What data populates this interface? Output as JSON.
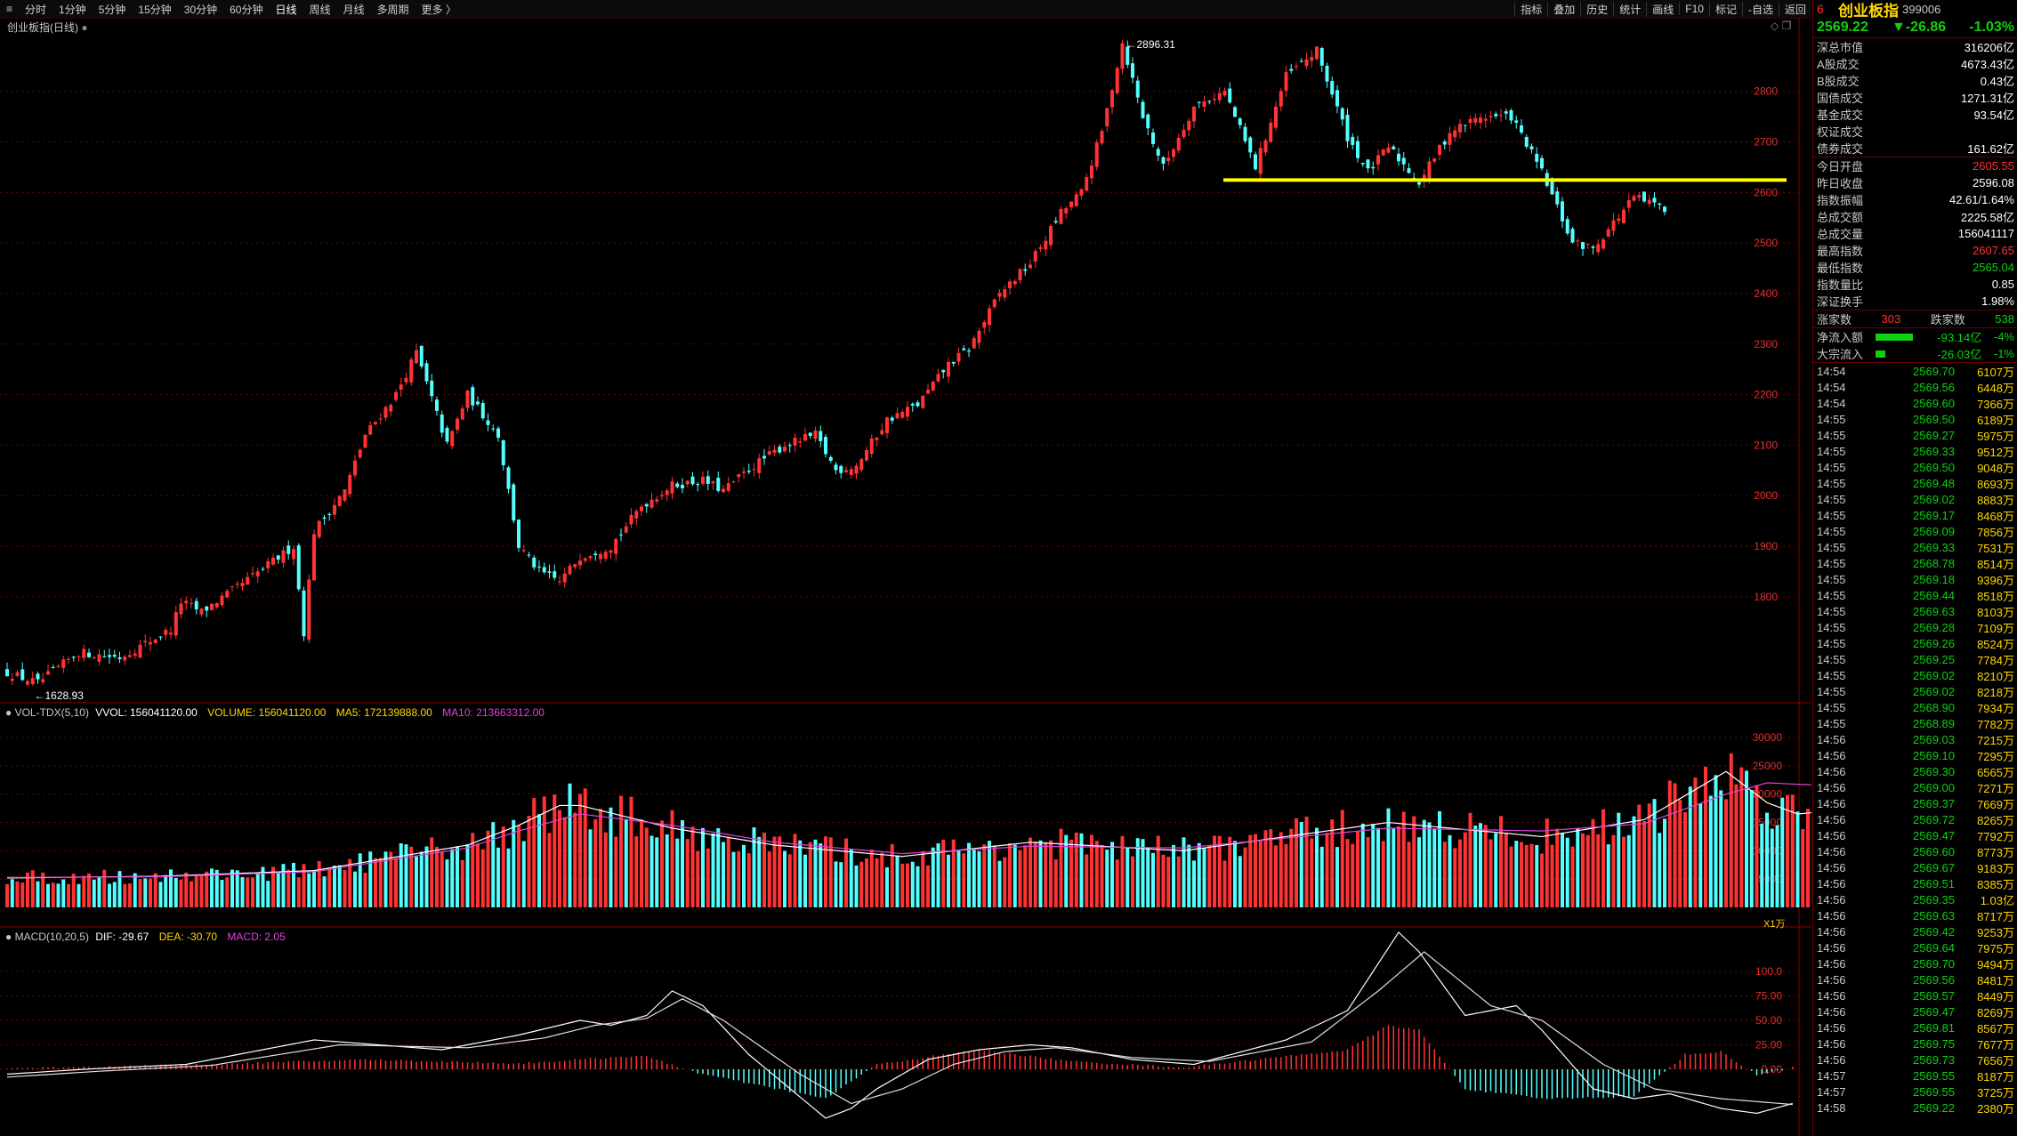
{
  "toolbar": {
    "items": [
      "分时",
      "1分钟",
      "5分钟",
      "15分钟",
      "30分钟",
      "60分钟",
      "日线",
      "周线",
      "月线",
      "多周期",
      "更多 〉"
    ],
    "active_index": 6,
    "right_items": [
      "指标",
      "叠加",
      "历史",
      "统计",
      "画线",
      "F10",
      "标记",
      "-自选",
      "返回"
    ]
  },
  "main_panel": {
    "title": "创业板指(日线)",
    "y_ticks": [
      1800,
      1900,
      2000,
      2100,
      2200,
      2300,
      2400,
      2500,
      2600,
      2700,
      2800
    ],
    "high_label": "2896.31",
    "low_label": "1628.93",
    "support_line": 2600,
    "colors": {
      "up": "#ff3333",
      "down": "#54ffff",
      "support": "#ffff00",
      "grid": "#7a0000"
    }
  },
  "volume_panel": {
    "title": "VOL-TDX(5,10)",
    "vvol": "VVOL: 156041120.00",
    "volume": "VOLUME: 156041120.00",
    "ma5": "MA5: 172139888.00",
    "ma10": "MA10: 213663312.00",
    "y_ticks": [
      5000,
      10000,
      15000,
      20000,
      25000,
      30000
    ],
    "unit": "X1万"
  },
  "macd_panel": {
    "title": "MACD(10,20,5)",
    "dif": "DIF: -29.67",
    "dea": "DEA: -30.70",
    "macd": "MACD: 2.05",
    "y_ticks": [
      "100.0",
      "75.00",
      "50.00",
      "25.00",
      "0.00"
    ]
  },
  "sidebar": {
    "num": "6",
    "name": "创业板指",
    "code": "399006",
    "price": "2569.22",
    "change": "▼-26.86",
    "pct": "-1.03%",
    "market": [
      {
        "k": "深总市值",
        "v": "316206亿",
        "c": "white"
      },
      {
        "k": "A股成交",
        "v": "4673.43亿",
        "c": "white"
      },
      {
        "k": "B股成交",
        "v": "0.43亿",
        "c": "white"
      },
      {
        "k": "国债成交",
        "v": "1271.31亿",
        "c": "white"
      },
      {
        "k": "基金成交",
        "v": "93.54亿",
        "c": "white"
      },
      {
        "k": "权证成交",
        "v": "",
        "c": "white"
      },
      {
        "k": "债券成交",
        "v": "161.62亿",
        "c": "white"
      }
    ],
    "stats": [
      {
        "k": "今日开盘",
        "v": "2605.55",
        "c": "red"
      },
      {
        "k": "昨日收盘",
        "v": "2596.08",
        "c": "white"
      },
      {
        "k": "指数振幅",
        "v": "42.61/1.64%",
        "c": "white"
      },
      {
        "k": "总成交额",
        "v": "2225.58亿",
        "c": "white"
      },
      {
        "k": "总成交量",
        "v": "156041117",
        "c": "white"
      },
      {
        "k": "最高指数",
        "v": "2607.65",
        "c": "red"
      },
      {
        "k": "最低指数",
        "v": "2565.04",
        "c": "green"
      },
      {
        "k": "指数量比",
        "v": "0.85",
        "c": "white"
      },
      {
        "k": "深证换手",
        "v": "1.98%",
        "c": "white"
      }
    ],
    "breadth": {
      "up_label": "涨家数",
      "up": "303",
      "down_label": "跌家数",
      "down": "538"
    },
    "flows": [
      {
        "k": "净流入额",
        "v": "-93.14亿",
        "p": "-4%",
        "bar": 0.75
      },
      {
        "k": "大宗流入",
        "v": "-26.03亿",
        "p": "-1%",
        "bar": 0.2
      }
    ],
    "ticks": [
      [
        "14:54",
        "2569.70",
        "6107万"
      ],
      [
        "14:54",
        "2569.56",
        "6448万"
      ],
      [
        "14:54",
        "2569.60",
        "7366万"
      ],
      [
        "14:55",
        "2569.50",
        "6189万"
      ],
      [
        "14:55",
        "2569.27",
        "5975万"
      ],
      [
        "14:55",
        "2569.33",
        "9512万"
      ],
      [
        "14:55",
        "2569.50",
        "9048万"
      ],
      [
        "14:55",
        "2569.48",
        "8693万"
      ],
      [
        "14:55",
        "2569.02",
        "8883万"
      ],
      [
        "14:55",
        "2569.17",
        "8468万"
      ],
      [
        "14:55",
        "2569.09",
        "7856万"
      ],
      [
        "14:55",
        "2569.33",
        "7531万"
      ],
      [
        "14:55",
        "2568.78",
        "8514万"
      ],
      [
        "14:55",
        "2569.18",
        "9396万"
      ],
      [
        "14:55",
        "2569.44",
        "8518万"
      ],
      [
        "14:55",
        "2569.63",
        "8103万"
      ],
      [
        "14:55",
        "2569.28",
        "7109万"
      ],
      [
        "14:55",
        "2569.26",
        "8524万"
      ],
      [
        "14:55",
        "2569.25",
        "7784万"
      ],
      [
        "14:55",
        "2569.02",
        "8210万"
      ],
      [
        "14:55",
        "2569.02",
        "8218万"
      ],
      [
        "14:55",
        "2568.90",
        "7934万"
      ],
      [
        "14:55",
        "2568.89",
        "7782万"
      ],
      [
        "14:56",
        "2569.03",
        "7215万"
      ],
      [
        "14:56",
        "2569.10",
        "7295万"
      ],
      [
        "14:56",
        "2569.30",
        "6565万"
      ],
      [
        "14:56",
        "2569.00",
        "7271万"
      ],
      [
        "14:56",
        "2569.37",
        "7669万"
      ],
      [
        "14:56",
        "2569.72",
        "8265万"
      ],
      [
        "14:56",
        "2569.47",
        "7792万"
      ],
      [
        "14:56",
        "2569.60",
        "8773万"
      ],
      [
        "14:56",
        "2569.67",
        "9183万"
      ],
      [
        "14:56",
        "2569.51",
        "8385万"
      ],
      [
        "14:56",
        "2569.35",
        "1.03亿"
      ],
      [
        "14:56",
        "2569.63",
        "8717万"
      ],
      [
        "14:56",
        "2569.42",
        "9253万"
      ],
      [
        "14:56",
        "2569.64",
        "7975万"
      ],
      [
        "14:56",
        "2569.70",
        "9494万"
      ],
      [
        "14:56",
        "2569.56",
        "8481万"
      ],
      [
        "14:56",
        "2569.57",
        "8449万"
      ],
      [
        "14:56",
        "2569.47",
        "8269万"
      ],
      [
        "14:56",
        "2569.81",
        "8567万"
      ],
      [
        "14:56",
        "2569.75",
        "7677万"
      ],
      [
        "14:56",
        "2569.73",
        "7656万"
      ],
      [
        "14:57",
        "2569.55",
        "8187万"
      ],
      [
        "14:57",
        "2569.55",
        "3725万"
      ],
      [
        "14:58",
        "2569.22",
        "2380万"
      ]
    ]
  },
  "chart_data": {
    "type": "candlestick",
    "title": "创业板指(日线)",
    "path": [
      [
        0,
        1650
      ],
      [
        6,
        1628.93
      ],
      [
        14,
        1690
      ],
      [
        22,
        1680
      ],
      [
        32,
        1735
      ],
      [
        34,
        1790
      ],
      [
        38,
        1770
      ],
      [
        44,
        1812
      ],
      [
        50,
        1855
      ],
      [
        56,
        1900
      ],
      [
        58,
        1730
      ],
      [
        60,
        1930
      ],
      [
        66,
        2010
      ],
      [
        70,
        2120
      ],
      [
        76,
        2200
      ],
      [
        80,
        2283
      ],
      [
        86,
        2100
      ],
      [
        90,
        2200
      ],
      [
        96,
        2120
      ],
      [
        100,
        1900
      ],
      [
        104,
        1850
      ],
      [
        108,
        1830
      ],
      [
        112,
        1880
      ],
      [
        118,
        1900
      ],
      [
        124,
        1980
      ],
      [
        130,
        2020
      ],
      [
        136,
        2030
      ],
      [
        140,
        2010
      ],
      [
        146,
        2060
      ],
      [
        152,
        2100
      ],
      [
        158,
        2120
      ],
      [
        162,
        2050
      ],
      [
        166,
        2060
      ],
      [
        172,
        2150
      ],
      [
        178,
        2180
      ],
      [
        184,
        2260
      ],
      [
        188,
        2290
      ],
      [
        194,
        2400
      ],
      [
        200,
        2460
      ],
      [
        206,
        2560
      ],
      [
        210,
        2600
      ],
      [
        214,
        2720
      ],
      [
        218,
        2896.31
      ],
      [
        222,
        2750
      ],
      [
        226,
        2650
      ],
      [
        232,
        2770
      ],
      [
        238,
        2800
      ],
      [
        244,
        2650
      ],
      [
        250,
        2830
      ],
      [
        256,
        2880
      ],
      [
        262,
        2710
      ],
      [
        266,
        2640
      ],
      [
        270,
        2690
      ],
      [
        276,
        2620
      ],
      [
        282,
        2720
      ],
      [
        288,
        2750
      ],
      [
        294,
        2750
      ],
      [
        300,
        2640
      ],
      [
        306,
        2500
      ],
      [
        310,
        2490
      ],
      [
        318,
        2590
      ],
      [
        324,
        2569.22
      ]
    ],
    "ma5_path": [
      [
        0,
        5200
      ],
      [
        30,
        5500
      ],
      [
        60,
        6500
      ],
      [
        90,
        11000
      ],
      [
        100,
        14500
      ],
      [
        108,
        18000
      ],
      [
        112,
        18000
      ],
      [
        130,
        14000
      ],
      [
        150,
        11000
      ],
      [
        175,
        9000
      ],
      [
        200,
        11500
      ],
      [
        230,
        10000
      ],
      [
        270,
        15000
      ],
      [
        300,
        12500
      ],
      [
        320,
        15500
      ],
      [
        336,
        24000
      ],
      [
        344,
        18500
      ],
      [
        350,
        16500
      ],
      [
        356,
        17000
      ]
    ],
    "ma10_path": [
      [
        0,
        5300
      ],
      [
        30,
        5400
      ],
      [
        60,
        6300
      ],
      [
        90,
        10500
      ],
      [
        100,
        13500
      ],
      [
        112,
        16500
      ],
      [
        130,
        14500
      ],
      [
        150,
        11500
      ],
      [
        175,
        9500
      ],
      [
        200,
        10800
      ],
      [
        230,
        10500
      ],
      [
        270,
        14000
      ],
      [
        300,
        13500
      ],
      [
        320,
        14800
      ],
      [
        336,
        20000
      ],
      [
        344,
        22000
      ],
      [
        356,
        21500
      ]
    ],
    "dif_path": [
      [
        0,
        -5
      ],
      [
        15,
        0
      ],
      [
        35,
        5
      ],
      [
        60,
        30
      ],
      [
        85,
        20
      ],
      [
        100,
        35
      ],
      [
        112,
        50
      ],
      [
        118,
        45
      ],
      [
        125,
        55
      ],
      [
        130,
        80
      ],
      [
        136,
        65
      ],
      [
        145,
        15
      ],
      [
        160,
        -50
      ],
      [
        165,
        -40
      ],
      [
        170,
        -20
      ],
      [
        180,
        10
      ],
      [
        190,
        20
      ],
      [
        200,
        25
      ],
      [
        208,
        22
      ],
      [
        220,
        10
      ],
      [
        232,
        5
      ],
      [
        250,
        30
      ],
      [
        262,
        60
      ],
      [
        272,
        140
      ],
      [
        276,
        120
      ],
      [
        285,
        55
      ],
      [
        295,
        65
      ],
      [
        300,
        40
      ],
      [
        310,
        -20
      ],
      [
        318,
        -30
      ],
      [
        325,
        -25
      ],
      [
        335,
        -40
      ],
      [
        342,
        -45
      ],
      [
        349,
        -35
      ]
    ],
    "dea_path": [
      [
        0,
        -8
      ],
      [
        18,
        -2
      ],
      [
        40,
        4
      ],
      [
        65,
        25
      ],
      [
        90,
        22
      ],
      [
        105,
        32
      ],
      [
        115,
        45
      ],
      [
        125,
        52
      ],
      [
        132,
        72
      ],
      [
        140,
        50
      ],
      [
        155,
        -5
      ],
      [
        165,
        -35
      ],
      [
        175,
        -20
      ],
      [
        185,
        5
      ],
      [
        195,
        18
      ],
      [
        205,
        22
      ],
      [
        220,
        12
      ],
      [
        235,
        8
      ],
      [
        255,
        28
      ],
      [
        268,
        80
      ],
      [
        277,
        120
      ],
      [
        290,
        65
      ],
      [
        300,
        50
      ],
      [
        312,
        5
      ],
      [
        322,
        -20
      ],
      [
        335,
        -30
      ],
      [
        349,
        -36
      ]
    ],
    "macd_hist_path": [
      [
        0,
        1
      ],
      [
        40,
        5
      ],
      [
        70,
        10
      ],
      [
        100,
        6
      ],
      [
        124,
        14
      ],
      [
        136,
        -5
      ],
      [
        160,
        -30
      ],
      [
        170,
        5
      ],
      [
        190,
        20
      ],
      [
        208,
        8
      ],
      [
        230,
        2
      ],
      [
        262,
        20
      ],
      [
        270,
        45
      ],
      [
        276,
        40
      ],
      [
        285,
        -20
      ],
      [
        300,
        -30
      ],
      [
        318,
        -28
      ],
      [
        328,
        15
      ],
      [
        335,
        18
      ],
      [
        342,
        -6
      ],
      [
        349,
        2
      ]
    ]
  }
}
